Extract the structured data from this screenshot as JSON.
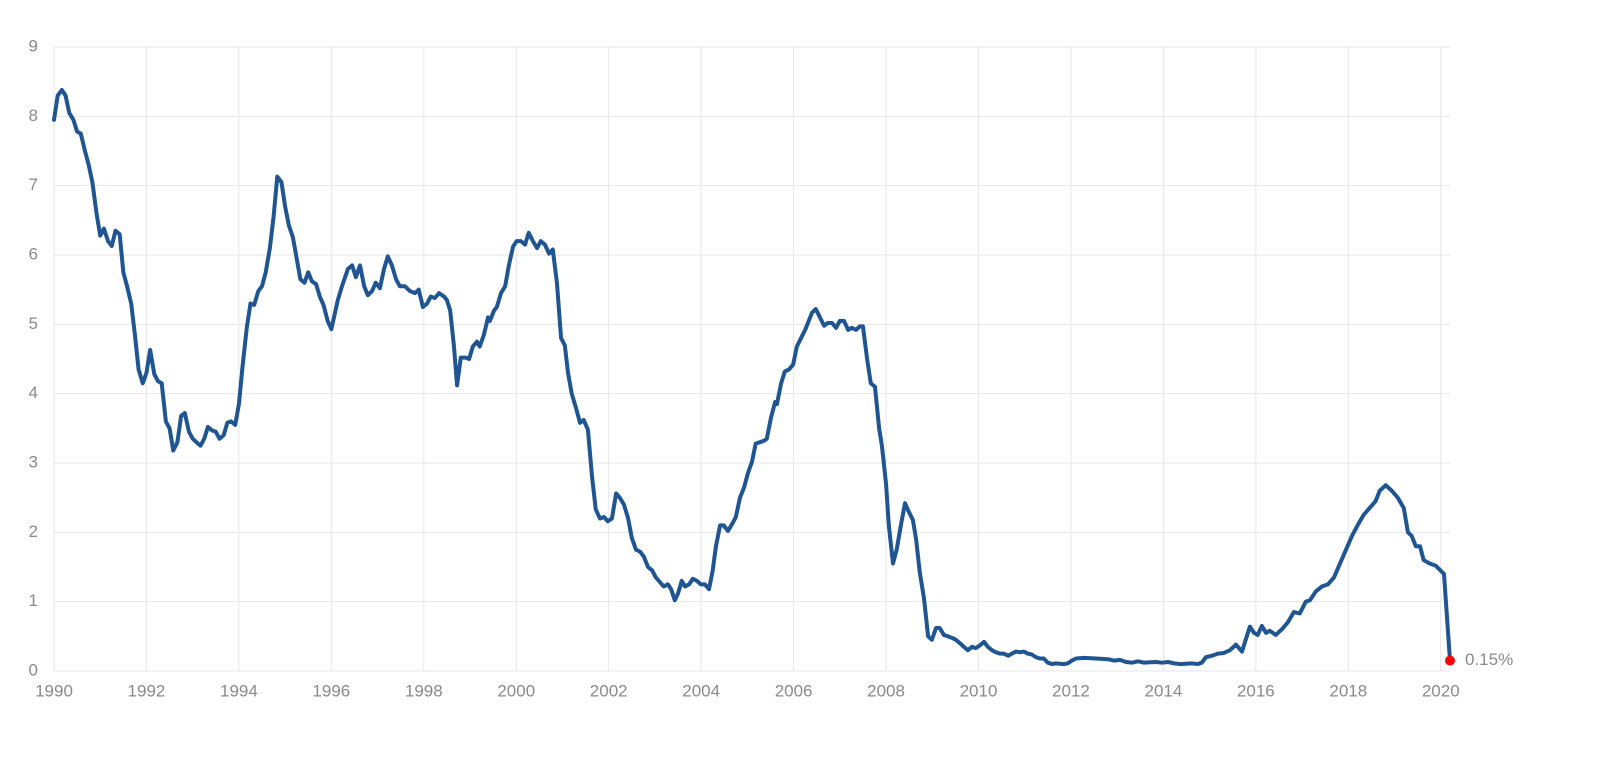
{
  "chart_data": {
    "type": "line",
    "color": "#1f5592",
    "marker_color": "#ff0000",
    "grid": true,
    "annotation": "0.15%",
    "xlim": [
      1990,
      2020.2
    ],
    "ylim": [
      0,
      9
    ],
    "xticks": [
      1990,
      1992,
      1994,
      1996,
      1998,
      2000,
      2002,
      2004,
      2006,
      2008,
      2010,
      2012,
      2014,
      2016,
      2018,
      2020
    ],
    "yticks": [
      0,
      1,
      2,
      3,
      4,
      5,
      6,
      7,
      8,
      9
    ],
    "x": [
      1990.0,
      1990.08,
      1990.17,
      1990.25,
      1990.33,
      1990.42,
      1990.5,
      1990.58,
      1990.67,
      1990.75,
      1990.83,
      1990.92,
      1991.0,
      1991.08,
      1991.17,
      1991.25,
      1991.33,
      1991.42,
      1991.5,
      1991.58,
      1991.67,
      1991.75,
      1991.83,
      1991.92,
      1992.0,
      1992.08,
      1992.17,
      1992.25,
      1992.33,
      1992.42,
      1992.5,
      1992.58,
      1992.67,
      1992.75,
      1992.83,
      1992.92,
      1993.0,
      1993.08,
      1993.17,
      1993.25,
      1993.33,
      1993.42,
      1993.5,
      1993.58,
      1993.67,
      1993.75,
      1993.83,
      1993.92,
      1994.0,
      1994.08,
      1994.17,
      1994.25,
      1994.33,
      1994.42,
      1994.5,
      1994.58,
      1994.67,
      1994.75,
      1994.83,
      1994.92,
      1995.0,
      1995.08,
      1995.17,
      1995.25,
      1995.33,
      1995.42,
      1995.5,
      1995.58,
      1995.67,
      1995.75,
      1995.83,
      1995.92,
      1996.0,
      1996.14,
      1996.23,
      1996.36,
      1996.45,
      1996.53,
      1996.62,
      1996.71,
      1996.79,
      1996.88,
      1996.96,
      1997.05,
      1997.14,
      1997.22,
      1997.31,
      1997.4,
      1997.48,
      1997.59,
      1997.7,
      1997.81,
      1997.89,
      1997.98,
      1998.07,
      1998.15,
      1998.24,
      1998.33,
      1998.44,
      1998.5,
      1998.57,
      1998.65,
      1998.72,
      1998.8,
      1998.91,
      1998.98,
      1999.06,
      1999.15,
      1999.21,
      1999.3,
      1999.39,
      1999.43,
      1999.52,
      1999.58,
      1999.67,
      1999.76,
      1999.84,
      1999.93,
      2000.01,
      2000.1,
      2000.19,
      2000.27,
      2000.36,
      2000.45,
      2000.53,
      2000.62,
      2000.71,
      2000.79,
      2000.88,
      2000.97,
      2001.05,
      2001.12,
      2001.2,
      2001.29,
      2001.38,
      2001.46,
      2001.55,
      2001.64,
      2001.72,
      2001.81,
      2001.9,
      2001.98,
      2002.07,
      2002.16,
      2002.24,
      2002.33,
      2002.42,
      2002.5,
      2002.59,
      2002.68,
      2002.76,
      2002.85,
      2002.94,
      2003.02,
      2003.11,
      2003.19,
      2003.28,
      2003.35,
      2003.43,
      2003.5,
      2003.58,
      2003.65,
      2003.74,
      2003.82,
      2003.91,
      2003.99,
      2004.08,
      2004.17,
      2004.25,
      2004.32,
      2004.41,
      2004.49,
      2004.58,
      2004.67,
      2004.75,
      2004.84,
      2004.93,
      2005.01,
      2005.1,
      2005.18,
      2005.27,
      2005.36,
      2005.42,
      2005.51,
      2005.6,
      2005.64,
      2005.73,
      2005.81,
      2005.9,
      2005.99,
      2006.07,
      2006.16,
      2006.25,
      2006.31,
      2006.4,
      2006.48,
      2006.57,
      2006.66,
      2006.74,
      2006.83,
      2006.92,
      2007.0,
      2007.09,
      2007.18,
      2007.26,
      2007.35,
      2007.43,
      2007.5,
      2007.59,
      2007.67,
      2007.76,
      2007.85,
      2007.91,
      2008.0,
      2008.06,
      2008.15,
      2008.23,
      2008.32,
      2008.41,
      2008.49,
      2008.58,
      2008.65,
      2008.73,
      2008.82,
      2008.91,
      2008.99,
      2009.08,
      2009.16,
      2009.25,
      2009.34,
      2009.42,
      2009.51,
      2009.6,
      2009.68,
      2009.77,
      2009.86,
      2009.94,
      2010.03,
      2010.12,
      2010.2,
      2010.29,
      2010.38,
      2010.46,
      2010.55,
      2010.64,
      2010.72,
      2010.81,
      2010.9,
      2010.98,
      2011.07,
      2011.15,
      2011.24,
      2011.33,
      2011.41,
      2011.5,
      2011.59,
      2011.67,
      2011.85,
      2011.93,
      2012.02,
      2012.11,
      2012.28,
      2012.54,
      2012.8,
      2012.93,
      2013.06,
      2013.19,
      2013.32,
      2013.45,
      2013.58,
      2013.84,
      2013.97,
      2014.1,
      2014.23,
      2014.36,
      2014.61,
      2014.74,
      2014.83,
      2014.92,
      2015.05,
      2015.18,
      2015.31,
      2015.44,
      2015.57,
      2015.7,
      2015.78,
      2015.87,
      2015.96,
      2016.04,
      2016.13,
      2016.22,
      2016.3,
      2016.43,
      2016.56,
      2016.69,
      2016.82,
      2016.95,
      2017.08,
      2017.17,
      2017.3,
      2017.43,
      2017.56,
      2017.69,
      2017.82,
      2017.95,
      2018.08,
      2018.2,
      2018.33,
      2018.46,
      2018.59,
      2018.68,
      2018.81,
      2018.94,
      2019.07,
      2019.2,
      2019.29,
      2019.37,
      2019.46,
      2019.55,
      2019.63,
      2019.76,
      2019.89,
      2020.07,
      2020.2
    ],
    "values": [
      7.95,
      8.3,
      8.38,
      8.3,
      8.05,
      7.95,
      7.78,
      7.75,
      7.5,
      7.3,
      7.05,
      6.6,
      6.28,
      6.38,
      6.2,
      6.13,
      6.35,
      6.3,
      5.75,
      5.55,
      5.3,
      4.85,
      4.35,
      4.15,
      4.3,
      4.63,
      4.28,
      4.18,
      4.15,
      3.6,
      3.5,
      3.18,
      3.3,
      3.68,
      3.72,
      3.45,
      3.35,
      3.3,
      3.25,
      3.35,
      3.52,
      3.47,
      3.45,
      3.35,
      3.4,
      3.58,
      3.6,
      3.55,
      3.85,
      4.4,
      4.95,
      5.3,
      5.28,
      5.48,
      5.55,
      5.75,
      6.1,
      6.55,
      7.13,
      7.05,
      6.7,
      6.43,
      6.25,
      5.95,
      5.65,
      5.6,
      5.75,
      5.62,
      5.58,
      5.4,
      5.28,
      5.05,
      4.93,
      5.35,
      5.55,
      5.8,
      5.85,
      5.68,
      5.85,
      5.55,
      5.42,
      5.48,
      5.6,
      5.52,
      5.8,
      5.98,
      5.85,
      5.65,
      5.55,
      5.55,
      5.48,
      5.45,
      5.5,
      5.25,
      5.3,
      5.4,
      5.38,
      5.45,
      5.4,
      5.35,
      5.2,
      4.7,
      4.12,
      4.52,
      4.52,
      4.5,
      4.68,
      4.75,
      4.68,
      4.85,
      5.1,
      5.05,
      5.2,
      5.25,
      5.45,
      5.55,
      5.85,
      6.12,
      6.2,
      6.2,
      6.15,
      6.32,
      6.2,
      6.1,
      6.2,
      6.15,
      6.02,
      6.08,
      5.6,
      4.8,
      4.7,
      4.3,
      4.0,
      3.8,
      3.58,
      3.62,
      3.48,
      2.8,
      2.33,
      2.2,
      2.22,
      2.16,
      2.2,
      2.56,
      2.5,
      2.4,
      2.2,
      1.92,
      1.75,
      1.72,
      1.65,
      1.5,
      1.45,
      1.35,
      1.28,
      1.22,
      1.25,
      1.18,
      1.02,
      1.12,
      1.3,
      1.22,
      1.25,
      1.33,
      1.3,
      1.25,
      1.25,
      1.18,
      1.45,
      1.8,
      2.1,
      2.1,
      2.02,
      2.12,
      2.22,
      2.5,
      2.65,
      2.85,
      3.02,
      3.28,
      3.3,
      3.32,
      3.35,
      3.65,
      3.88,
      3.85,
      4.15,
      4.32,
      4.35,
      4.42,
      4.68,
      4.8,
      4.92,
      5.02,
      5.17,
      5.22,
      5.1,
      4.98,
      5.02,
      5.02,
      4.95,
      5.05,
      5.05,
      4.92,
      4.95,
      4.92,
      4.97,
      4.97,
      4.5,
      4.15,
      4.1,
      3.5,
      3.25,
      2.7,
      2.1,
      1.55,
      1.75,
      2.1,
      2.42,
      2.3,
      2.18,
      1.9,
      1.42,
      1.05,
      0.5,
      0.45,
      0.62,
      0.62,
      0.52,
      0.5,
      0.48,
      0.45,
      0.4,
      0.35,
      0.3,
      0.35,
      0.33,
      0.37,
      0.42,
      0.35,
      0.3,
      0.27,
      0.25,
      0.25,
      0.22,
      0.25,
      0.28,
      0.27,
      0.28,
      0.25,
      0.24,
      0.2,
      0.18,
      0.18,
      0.12,
      0.1,
      0.11,
      0.1,
      0.11,
      0.15,
      0.18,
      0.19,
      0.18,
      0.17,
      0.15,
      0.16,
      0.13,
      0.12,
      0.14,
      0.12,
      0.13,
      0.12,
      0.13,
      0.11,
      0.1,
      0.11,
      0.1,
      0.12,
      0.2,
      0.22,
      0.25,
      0.26,
      0.3,
      0.38,
      0.28,
      0.45,
      0.64,
      0.55,
      0.52,
      0.65,
      0.55,
      0.58,
      0.52,
      0.6,
      0.7,
      0.85,
      0.83,
      1.0,
      1.02,
      1.15,
      1.22,
      1.25,
      1.35,
      1.55,
      1.75,
      1.95,
      2.1,
      2.25,
      2.35,
      2.45,
      2.6,
      2.68,
      2.6,
      2.5,
      2.35,
      2.0,
      1.95,
      1.8,
      1.8,
      1.6,
      1.55,
      1.52,
      1.4,
      0.15
    ]
  }
}
